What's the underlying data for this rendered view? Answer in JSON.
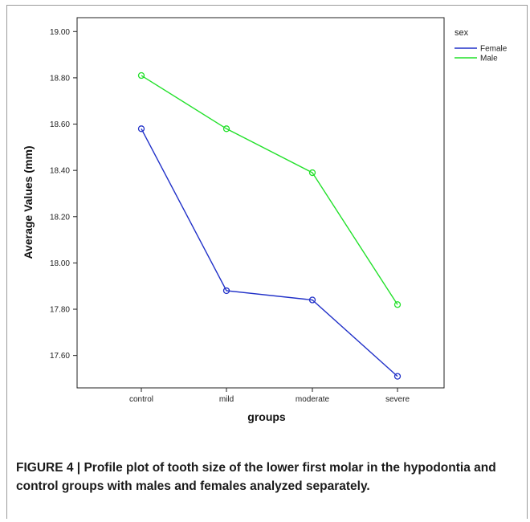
{
  "chart_data": {
    "type": "line",
    "categories": [
      "control",
      "mild",
      "moderate",
      "severe"
    ],
    "xlabel": "groups",
    "ylabel": "Average Values (mm)",
    "ylim": [
      17.46,
      19.06
    ],
    "yticks": [
      17.6,
      17.8,
      18.0,
      18.2,
      18.4,
      18.6,
      18.8,
      19.0
    ],
    "ytick_labels": [
      "17.60",
      "17.80",
      "18.00",
      "18.20",
      "18.40",
      "18.60",
      "18.80",
      "19.00"
    ],
    "legend_title": "sex",
    "legend_position": "top-right",
    "grid": false,
    "series": [
      {
        "name": "Female",
        "color": "#2030c8",
        "values": [
          18.58,
          17.88,
          17.84,
          17.51
        ]
      },
      {
        "name": "Male",
        "color": "#22e02a",
        "values": [
          18.81,
          18.58,
          18.39,
          17.82
        ]
      }
    ]
  },
  "caption": {
    "label": "FIGURE 4 |",
    "text": "Profile plot of tooth size of the lower first molar in the hypodontia and control groups with males and females analyzed separately."
  }
}
